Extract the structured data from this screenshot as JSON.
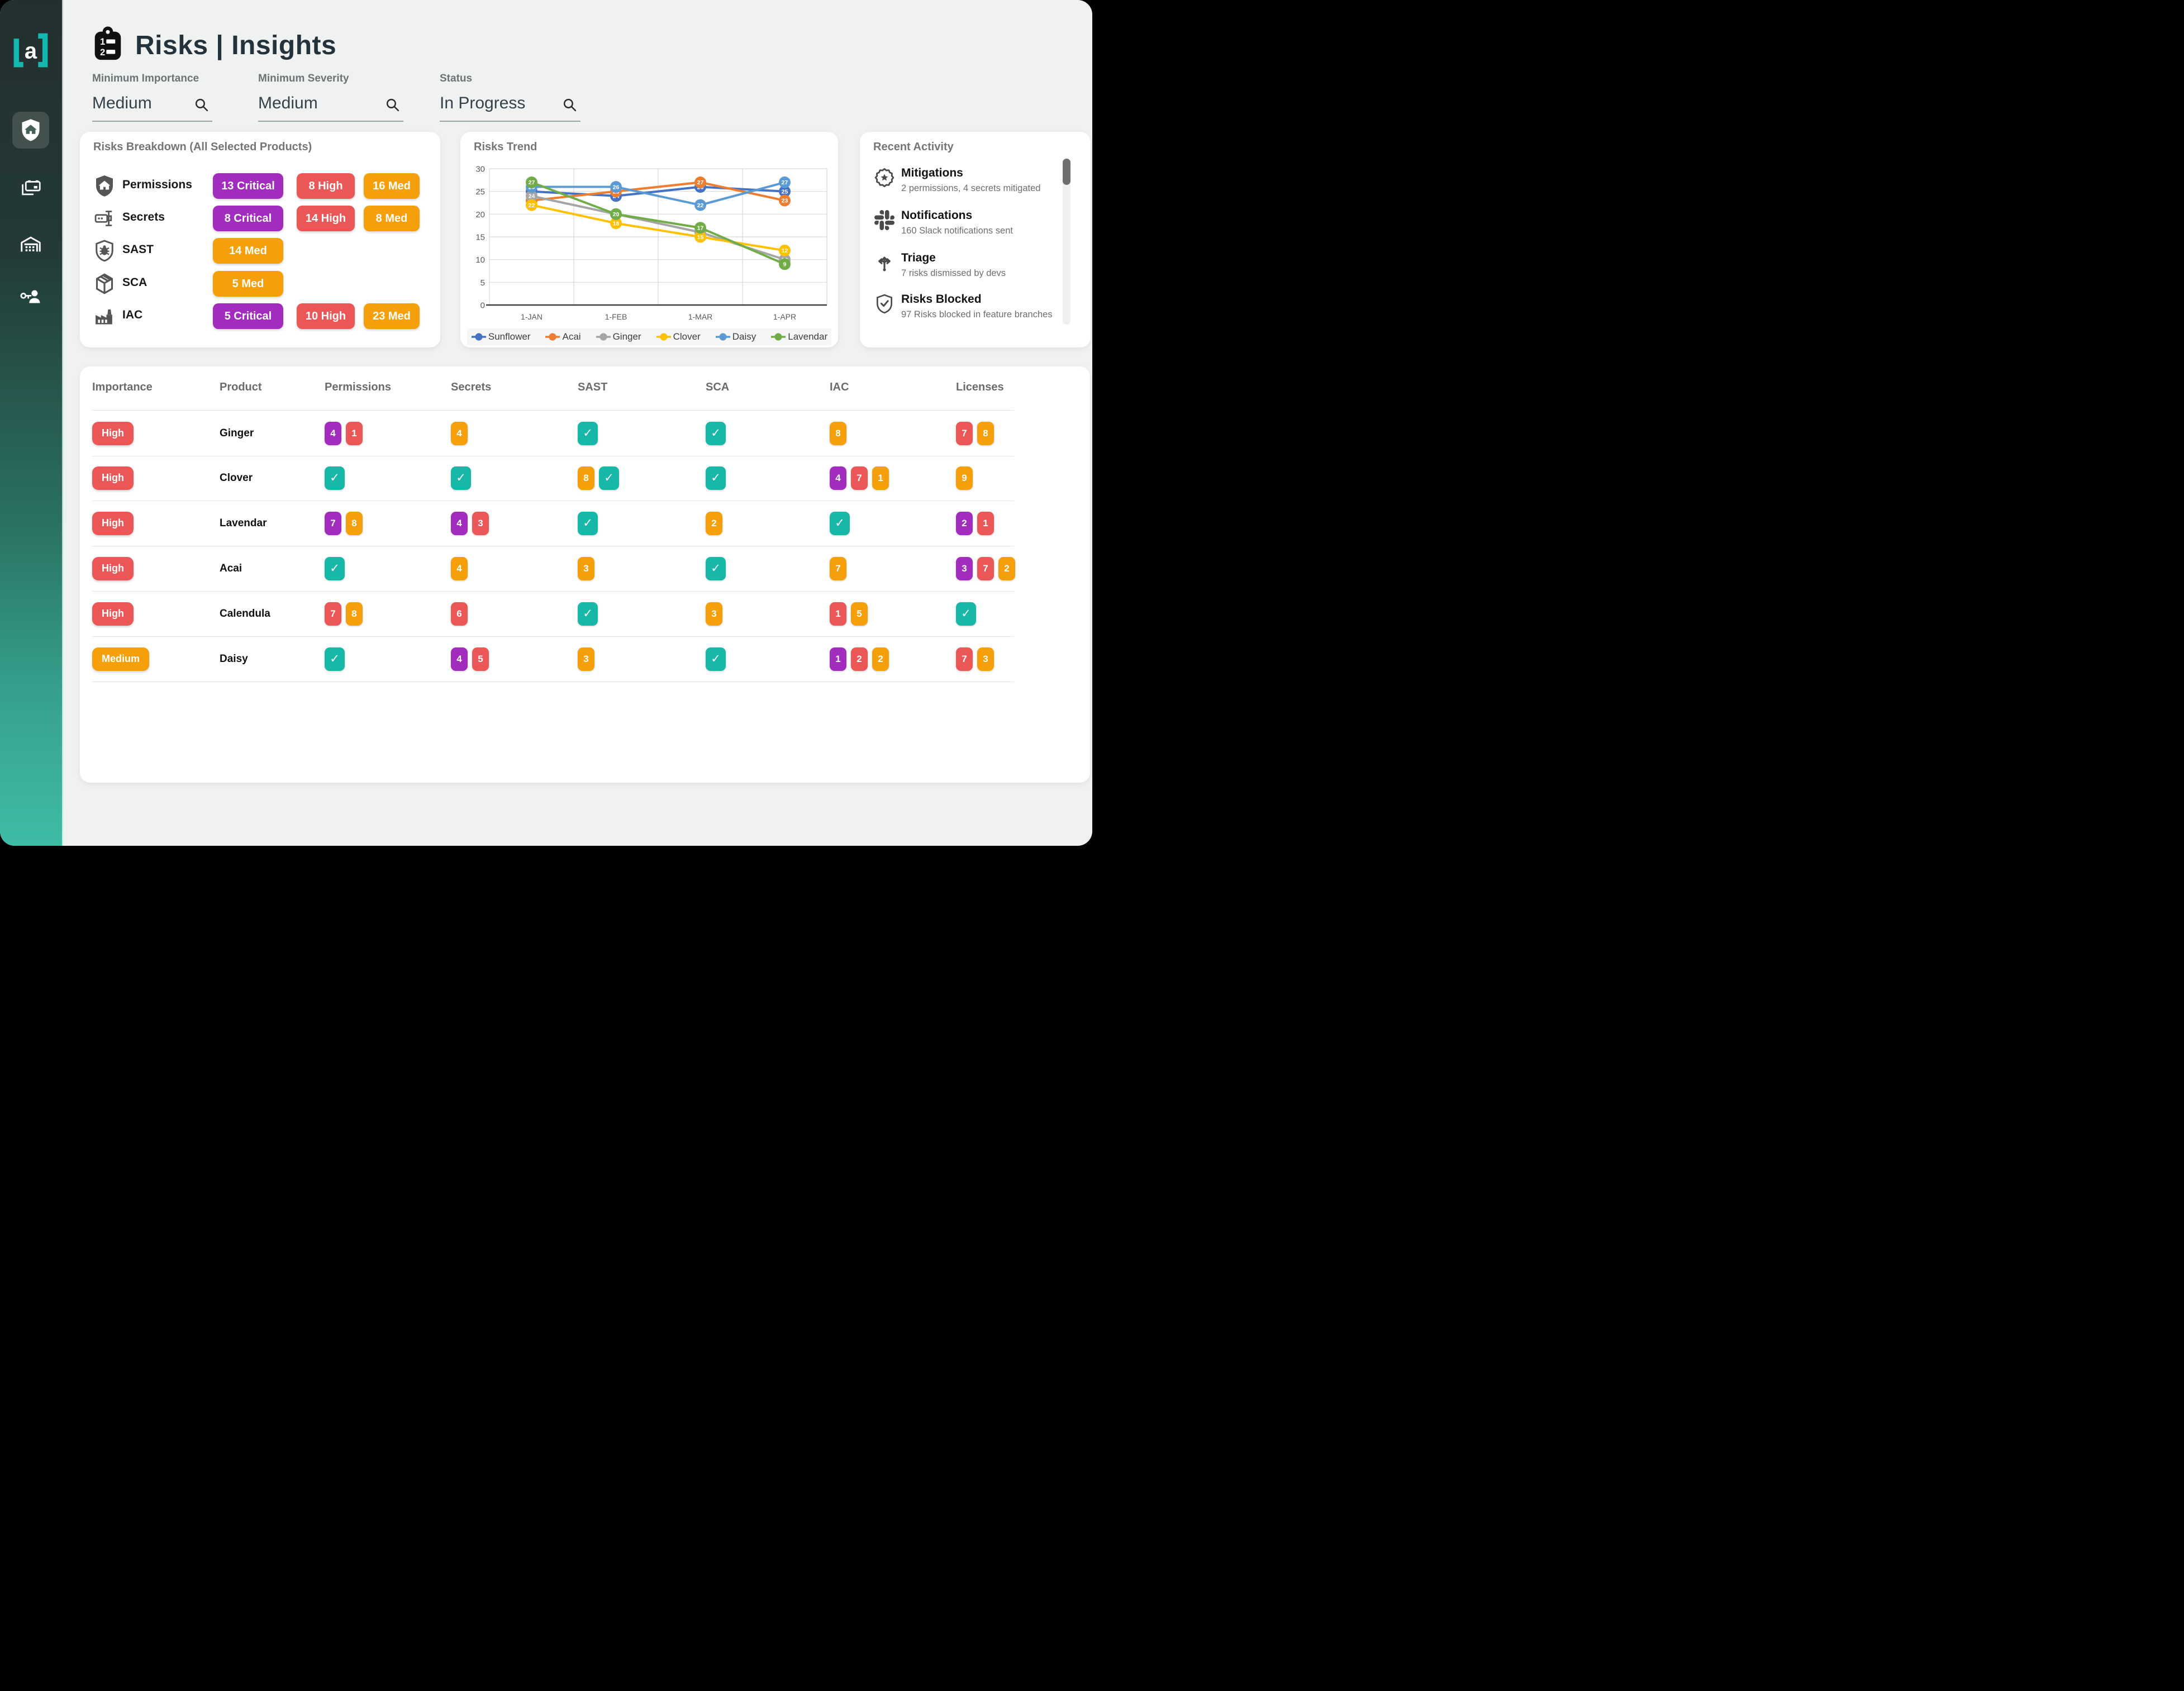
{
  "header": {
    "title": "Risks | Insights",
    "icon": "numbered-clipboard-icon"
  },
  "sidebar": {
    "logo_text": "a",
    "items": [
      {
        "icon": "shield-home-icon",
        "name": "home",
        "active": true
      },
      {
        "icon": "devices-icon",
        "name": "devices",
        "active": false
      },
      {
        "icon": "warehouse-icon",
        "name": "warehouse",
        "active": false
      },
      {
        "icon": "key-person-icon",
        "name": "access",
        "active": false
      }
    ]
  },
  "filters": [
    {
      "label": "Minimum Importance",
      "value": "Medium",
      "icon": "search-icon"
    },
    {
      "label": "Minimum Severity",
      "value": "Medium",
      "icon": "search-icon"
    },
    {
      "label": "Status",
      "value": "In Progress",
      "icon": "search-icon"
    }
  ],
  "breakdown": {
    "title": "Risks Breakdown (All Selected Products)",
    "rows": [
      {
        "icon": "shield-home-icon",
        "label": "Permissions",
        "badges": [
          {
            "text": "13 Critical",
            "type": "critical"
          },
          {
            "text": "8 High",
            "type": "high"
          },
          {
            "text": "16 Med",
            "type": "med"
          }
        ]
      },
      {
        "icon": "secrets-icon",
        "label": "Secrets",
        "badges": [
          {
            "text": "8 Critical",
            "type": "critical"
          },
          {
            "text": "14 High",
            "type": "high"
          },
          {
            "text": "8 Med",
            "type": "med"
          }
        ]
      },
      {
        "icon": "shield-bug-icon",
        "label": "SAST",
        "badges": [
          {
            "text": "14 Med",
            "type": "med"
          }
        ]
      },
      {
        "icon": "package-icon",
        "label": "SCA",
        "badges": [
          {
            "text": "5 Med",
            "type": "med"
          }
        ]
      },
      {
        "icon": "factory-icon",
        "label": "IAC",
        "badges": [
          {
            "text": "5 Critical",
            "type": "critical"
          },
          {
            "text": "10 High",
            "type": "high"
          },
          {
            "text": "23 Med",
            "type": "med"
          }
        ]
      }
    ]
  },
  "chart_data": {
    "type": "line",
    "title": "Risks Trend",
    "x": [
      "1-JAN",
      "1-FEB",
      "1-MAR",
      "1-APR"
    ],
    "ylim": [
      0,
      30
    ],
    "yticks": [
      0,
      5,
      10,
      15,
      20,
      25,
      30
    ],
    "grid": true,
    "legend_position": "bottom",
    "series": [
      {
        "name": "Sunflower",
        "color": "#4472C4",
        "values": [
          25,
          24,
          26,
          25
        ]
      },
      {
        "name": "Acai",
        "color": "#ED7D31",
        "values": [
          23,
          25,
          27,
          23
        ]
      },
      {
        "name": "Ginger",
        "color": "#A5A5A5",
        "values": [
          24,
          20,
          16,
          10
        ]
      },
      {
        "name": "Clover",
        "color": "#FFC000",
        "values": [
          22,
          18,
          15,
          12
        ]
      },
      {
        "name": "Daisy",
        "color": "#5B9BD5",
        "values": [
          26,
          26,
          22,
          27
        ]
      },
      {
        "name": "Lavendar",
        "color": "#70AD47",
        "values": [
          27,
          20,
          17,
          9
        ]
      }
    ]
  },
  "activity": {
    "title": "Recent Activity",
    "items": [
      {
        "icon": "badge-star-icon",
        "title": "Mitigations",
        "subtitle": "2 permissions, 4  secrets mitigated"
      },
      {
        "icon": "slack-icon",
        "title": "Notifications",
        "subtitle": "160 Slack notifications sent"
      },
      {
        "icon": "triage-arrows-icon",
        "title": "Triage",
        "subtitle": "7 risks dismissed by devs"
      },
      {
        "icon": "shield-check-icon",
        "title": "Risks Blocked",
        "subtitle": "97 Risks blocked in feature branches"
      }
    ]
  },
  "table": {
    "columns": [
      "Importance",
      "Product",
      "Permissions",
      "Secrets",
      "SAST",
      "SCA",
      "IAC",
      "Licenses"
    ],
    "rows": [
      {
        "importance": "High",
        "importance_type": "high",
        "product": "Ginger",
        "cells": {
          "permissions": [
            {
              "v": "4",
              "t": "critical"
            },
            {
              "v": "1",
              "t": "high"
            }
          ],
          "secrets": [
            {
              "v": "4",
              "t": "med"
            }
          ],
          "sast": [
            {
              "t": "check"
            }
          ],
          "sca": [
            {
              "t": "check"
            }
          ],
          "iac": [
            {
              "v": "8",
              "t": "med"
            }
          ],
          "licenses": [
            {
              "v": "7",
              "t": "high"
            },
            {
              "v": "8",
              "t": "med"
            }
          ]
        }
      },
      {
        "importance": "High",
        "importance_type": "high",
        "product": "Clover",
        "cells": {
          "permissions": [
            {
              "t": "check"
            }
          ],
          "secrets": [
            {
              "t": "check"
            }
          ],
          "sast": [
            {
              "v": "8",
              "t": "med"
            },
            {
              "t": "check"
            }
          ],
          "sca": [
            {
              "t": "check"
            }
          ],
          "iac": [
            {
              "v": "4",
              "t": "critical"
            },
            {
              "v": "7",
              "t": "high"
            },
            {
              "v": "1",
              "t": "med"
            }
          ],
          "licenses": [
            {
              "v": "9",
              "t": "med"
            }
          ]
        }
      },
      {
        "importance": "High",
        "importance_type": "high",
        "product": "Lavendar",
        "cells": {
          "permissions": [
            {
              "v": "7",
              "t": "critical"
            },
            {
              "v": "8",
              "t": "med"
            }
          ],
          "secrets": [
            {
              "v": "4",
              "t": "critical"
            },
            {
              "v": "3",
              "t": "high"
            }
          ],
          "sast": [
            {
              "t": "check"
            }
          ],
          "sca": [
            {
              "v": "2",
              "t": "med"
            }
          ],
          "iac": [
            {
              "t": "check"
            }
          ],
          "licenses": [
            {
              "v": "2",
              "t": "critical"
            },
            {
              "v": "1",
              "t": "high"
            }
          ]
        }
      },
      {
        "importance": "High",
        "importance_type": "high",
        "product": "Acai",
        "cells": {
          "permissions": [
            {
              "t": "check"
            }
          ],
          "secrets": [
            {
              "v": "4",
              "t": "med"
            }
          ],
          "sast": [
            {
              "v": "3",
              "t": "med"
            }
          ],
          "sca": [
            {
              "t": "check"
            }
          ],
          "iac": [
            {
              "v": "7",
              "t": "med"
            }
          ],
          "licenses": [
            {
              "v": "3",
              "t": "critical"
            },
            {
              "v": "7",
              "t": "high"
            },
            {
              "v": "2",
              "t": "med"
            }
          ]
        }
      },
      {
        "importance": "High",
        "importance_type": "high",
        "product": "Calendula",
        "cells": {
          "permissions": [
            {
              "v": "7",
              "t": "high"
            },
            {
              "v": "8",
              "t": "med"
            }
          ],
          "secrets": [
            {
              "v": "6",
              "t": "high"
            }
          ],
          "sast": [
            {
              "t": "check"
            }
          ],
          "sca": [
            {
              "v": "3",
              "t": "med"
            }
          ],
          "iac": [
            {
              "v": "1",
              "t": "high"
            },
            {
              "v": "5",
              "t": "med"
            }
          ],
          "licenses": [
            {
              "t": "check"
            }
          ]
        }
      },
      {
        "importance": "Medium",
        "importance_type": "med",
        "product": "Daisy",
        "cells": {
          "permissions": [
            {
              "t": "check"
            }
          ],
          "secrets": [
            {
              "v": "4",
              "t": "critical"
            },
            {
              "v": "5",
              "t": "high"
            }
          ],
          "sast": [
            {
              "v": "3",
              "t": "med"
            }
          ],
          "sca": [
            {
              "t": "check"
            }
          ],
          "iac": [
            {
              "v": "1",
              "t": "critical"
            },
            {
              "v": "2",
              "t": "high"
            },
            {
              "v": "2",
              "t": "med"
            }
          ],
          "licenses": [
            {
              "v": "7",
              "t": "high"
            },
            {
              "v": "3",
              "t": "med"
            }
          ]
        }
      }
    ]
  },
  "colors": {
    "critical": "#A12CBE",
    "high": "#EB5757",
    "med": "#F5A00B",
    "check": "#18B8A8",
    "accent_teal": "#14B8B0",
    "sidebar_top": "#232F2E",
    "sidebar_bottom": "#3EBCA5"
  }
}
